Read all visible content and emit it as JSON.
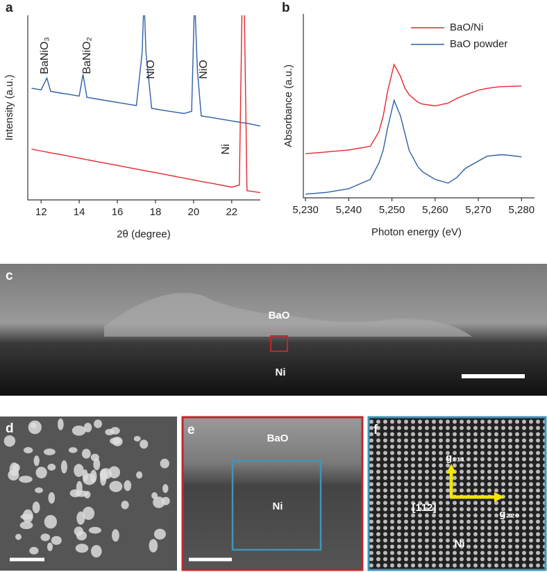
{
  "chart_data": [
    {
      "type": "line",
      "panel": "a",
      "xlabel": "2θ (degree)",
      "ylabel": "Intensity (a.u.)",
      "xlim": [
        11.3,
        23.5
      ],
      "xticks": [
        12,
        14,
        16,
        18,
        20,
        22
      ],
      "ylim": [
        0,
        10
      ],
      "x": [
        11.5,
        12.0,
        12.3,
        12.5,
        13,
        13.5,
        14.0,
        14.2,
        14.4,
        15,
        16,
        17.0,
        17.3,
        17.4,
        17.5,
        17.8,
        18.5,
        19.5,
        19.9,
        20.05,
        20.2,
        20.4,
        21,
        22,
        22.4,
        22.55,
        22.65,
        22.8,
        23.5
      ],
      "series": [
        {
          "color": "#2c5ea6",
          "values": [
            6.05,
            5.96,
            6.6,
            5.88,
            5.79,
            5.71,
            5.62,
            6.8,
            5.56,
            5.45,
            5.28,
            5.11,
            8,
            11,
            8,
            4.96,
            4.84,
            4.68,
            4.8,
            11,
            7,
            4.55,
            4.45,
            4.28,
            4.21,
            4.18,
            4.17,
            4.15,
            4.0
          ]
        },
        {
          "color": "#e5262b",
          "values": [
            2.75,
            2.65,
            2.59,
            2.55,
            2.46,
            2.36,
            2.26,
            2.22,
            2.18,
            2.06,
            1.87,
            1.67,
            1.61,
            1.59,
            1.57,
            1.52,
            1.38,
            1.18,
            1.1,
            1.07,
            1.04,
            1.0,
            0.89,
            0.69,
            0.8,
            11,
            11,
            0.5,
            0.4
          ]
        }
      ],
      "annotations": [
        "BaNiO₃",
        "BaNiO₂",
        "NiO",
        "NiO",
        "Ni"
      ]
    },
    {
      "type": "line",
      "panel": "b",
      "xlabel": "Photon energy (eV)",
      "ylabel": "Absorbance (a.u.)",
      "xlim": [
        5229.5,
        5283
      ],
      "xticks": [
        {
          "value": 5230,
          "label": "5,230"
        },
        {
          "value": 5240,
          "label": "5,240"
        },
        {
          "value": 5250,
          "label": "5,250"
        },
        {
          "value": 5260,
          "label": "5,260"
        },
        {
          "value": 5270,
          "label": "5,270"
        },
        {
          "value": 5280,
          "label": "5,280"
        }
      ],
      "ylim": [
        0,
        10
      ],
      "legend": "upper right",
      "x": [
        5230,
        5235,
        5240,
        5245,
        5247,
        5248,
        5249,
        5250.5,
        5252,
        5253,
        5254,
        5256,
        5257,
        5260,
        5263,
        5265,
        5267,
        5270,
        5272,
        5275,
        5276,
        5280
      ],
      "series": [
        {
          "name": "BaO/Ni",
          "color": "#e5262b",
          "values": [
            2.4,
            2.5,
            2.6,
            2.8,
            3.6,
            4.45,
            5.8,
            7.25,
            6.6,
            5.96,
            5.6,
            5.2,
            5.1,
            5.0,
            5.15,
            5.4,
            5.6,
            5.85,
            5.95,
            6.04,
            6.05,
            6.08
          ]
        },
        {
          "name": "BaO powder",
          "color": "#2c5ea6",
          "values": [
            0.2,
            0.3,
            0.5,
            1.0,
            1.9,
            2.6,
            3.8,
            5.3,
            4.45,
            3.5,
            2.57,
            1.7,
            1.43,
            1.0,
            0.8,
            1.1,
            1.6,
            2.0,
            2.26,
            2.34,
            2.34,
            2.23
          ]
        }
      ]
    }
  ],
  "images": [
    {
      "panel": "c",
      "labels": [
        "BaO",
        "Ni"
      ]
    },
    {
      "panel": "d",
      "labels": []
    },
    {
      "panel": "e",
      "labels": [
        "BaO",
        "Ni"
      ]
    },
    {
      "panel": "f",
      "labels": [
        "g₁₁₁",
        "[1̄1̄2]",
        "g₂̄₂₀",
        "Ni"
      ]
    }
  ]
}
